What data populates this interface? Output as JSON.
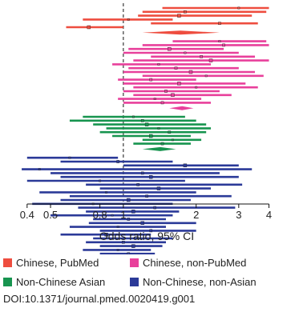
{
  "chart_data": {
    "type": "forest",
    "xlabel": "Odds ratio, 95% CI",
    "xscale": "log",
    "xlim": [
      0.36,
      4.3
    ],
    "xticks": [
      0.4,
      0.5,
      0.8,
      1,
      2,
      3,
      4
    ],
    "xtick_labels": [
      "0.4",
      "0.5",
      "0.8",
      "1",
      "2",
      "3",
      "4"
    ],
    "reference_line": 1,
    "legend_position": "bottom",
    "groups": [
      {
        "name": "Chinese, PubMed",
        "color": "#ee4d3f",
        "studies": [
          {
            "or": 3.0,
            "lo": 1.45,
            "hi": 4.0
          },
          {
            "or": 1.8,
            "lo": 1.2,
            "hi": 3.9
          },
          {
            "or": 1.7,
            "lo": 1.15,
            "hi": 3.4
          },
          {
            "or": 1.05,
            "lo": 0.68,
            "hi": 1.6
          },
          {
            "or": 2.5,
            "lo": 1.3,
            "hi": 3.6
          },
          {
            "or": 0.72,
            "lo": 0.58,
            "hi": 1.0
          }
        ],
        "pooled": {
          "or": 1.72,
          "lo": 1.2,
          "hi": 2.5
        }
      },
      {
        "name": "Chinese, non-PubMed",
        "color": "#e8409b",
        "studies": [
          {
            "or": 2.5,
            "lo": 1.6,
            "hi": 3.9
          },
          {
            "or": 2.6,
            "lo": 1.2,
            "hi": 4.0
          },
          {
            "or": 1.55,
            "lo": 1.05,
            "hi": 2.6
          },
          {
            "or": 1.8,
            "lo": 1.0,
            "hi": 3.0
          },
          {
            "or": 2.1,
            "lo": 1.3,
            "hi": 3.5
          },
          {
            "or": 2.3,
            "lo": 1.1,
            "hi": 4.0
          },
          {
            "or": 1.4,
            "lo": 0.9,
            "hi": 2.3
          },
          {
            "or": 1.65,
            "lo": 1.05,
            "hi": 3.0
          },
          {
            "or": 1.9,
            "lo": 1.0,
            "hi": 3.5
          },
          {
            "or": 2.2,
            "lo": 1.2,
            "hi": 3.8
          },
          {
            "or": 1.3,
            "lo": 0.95,
            "hi": 2.0
          },
          {
            "or": 1.7,
            "lo": 1.0,
            "hi": 3.2
          },
          {
            "or": 2.0,
            "lo": 1.1,
            "hi": 3.6
          },
          {
            "or": 1.5,
            "lo": 1.0,
            "hi": 2.5
          },
          {
            "or": 1.6,
            "lo": 1.1,
            "hi": 2.8
          },
          {
            "or": 1.35,
            "lo": 0.95,
            "hi": 2.1
          },
          {
            "or": 1.45,
            "lo": 1.0,
            "hi": 2.3
          }
        ],
        "pooled": {
          "or": 1.75,
          "lo": 1.55,
          "hi": 1.95
        }
      },
      {
        "name": "Non-Chinese Asian",
        "color": "#17944f",
        "studies": [
          {
            "or": 1.1,
            "lo": 0.68,
            "hi": 1.8
          },
          {
            "or": 1.2,
            "lo": 0.6,
            "hi": 2.0
          },
          {
            "or": 1.25,
            "lo": 0.75,
            "hi": 2.2
          },
          {
            "or": 1.4,
            "lo": 0.85,
            "hi": 2.3
          },
          {
            "or": 1.55,
            "lo": 0.8,
            "hi": 2.2
          },
          {
            "or": 1.3,
            "lo": 0.9,
            "hi": 1.9
          },
          {
            "or": 1.6,
            "lo": 1.2,
            "hi": 2.1
          },
          {
            "or": 1.45,
            "lo": 1.1,
            "hi": 1.9
          }
        ],
        "pooled": {
          "or": 1.42,
          "lo": 1.2,
          "hi": 1.65
        }
      },
      {
        "name": "Non-Chinese, non-Asian",
        "color": "#2b3a98",
        "studies": [
          {
            "or": 0.6,
            "lo": 0.4,
            "hi": 0.95
          },
          {
            "or": 0.95,
            "lo": 0.55,
            "hi": 1.6
          },
          {
            "or": 1.8,
            "lo": 1.0,
            "hi": 3.0
          },
          {
            "or": 0.45,
            "lo": 0.38,
            "hi": 3.4
          },
          {
            "or": 1.2,
            "lo": 0.5,
            "hi": 2.5
          },
          {
            "or": 1.3,
            "lo": 0.55,
            "hi": 3.0
          },
          {
            "or": 0.8,
            "lo": 0.4,
            "hi": 1.8
          },
          {
            "or": 1.15,
            "lo": 0.7,
            "hi": 3.1
          },
          {
            "or": 1.4,
            "lo": 0.8,
            "hi": 2.3
          },
          {
            "or": 0.85,
            "lo": 0.45,
            "hi": 2.0
          },
          {
            "or": 1.25,
            "lo": 0.6,
            "hi": 2.8
          },
          {
            "or": 1.05,
            "lo": 0.55,
            "hi": 1.9
          },
          {
            "or": 0.75,
            "lo": 0.42,
            "hi": 1.6
          },
          {
            "or": 1.35,
            "lo": 0.65,
            "hi": 2.9
          },
          {
            "or": 1.1,
            "lo": 0.7,
            "hi": 1.7
          },
          {
            "or": 0.9,
            "lo": 0.5,
            "hi": 1.6
          },
          {
            "or": 1.05,
            "lo": 0.75,
            "hi": 1.5
          },
          {
            "or": 1.2,
            "lo": 0.72,
            "hi": 2.0
          },
          {
            "or": 0.95,
            "lo": 0.6,
            "hi": 1.5
          },
          {
            "or": 1.3,
            "lo": 0.8,
            "hi": 2.0
          },
          {
            "or": 0.85,
            "lo": 0.55,
            "hi": 1.3
          },
          {
            "or": 1.15,
            "lo": 0.75,
            "hi": 1.6
          },
          {
            "or": 1.0,
            "lo": 0.7,
            "hi": 1.5
          },
          {
            "or": 1.1,
            "lo": 0.8,
            "hi": 1.45
          },
          {
            "or": 0.95,
            "lo": 0.68,
            "hi": 1.3
          },
          {
            "or": 1.05,
            "lo": 0.8,
            "hi": 1.35
          },
          {
            "or": 1.0,
            "lo": 0.75,
            "hi": 1.3
          },
          {
            "or": 1.02,
            "lo": 0.85,
            "hi": 1.2
          }
        ],
        "pooled": {
          "or": 1.08,
          "lo": 1.0,
          "hi": 1.17
        }
      }
    ]
  },
  "legend": {
    "items": [
      {
        "label": "Chinese, PubMed",
        "color": "#ee4d3f"
      },
      {
        "label": "Chinese, non-PubMed",
        "color": "#e8409b"
      },
      {
        "label": "Non-Chinese Asian",
        "color": "#17944f"
      },
      {
        "label": "Non-Chinese, non-Asian",
        "color": "#2b3a98"
      }
    ]
  },
  "doi": "DOI:10.1371/journal.pmed.0020419.g001"
}
